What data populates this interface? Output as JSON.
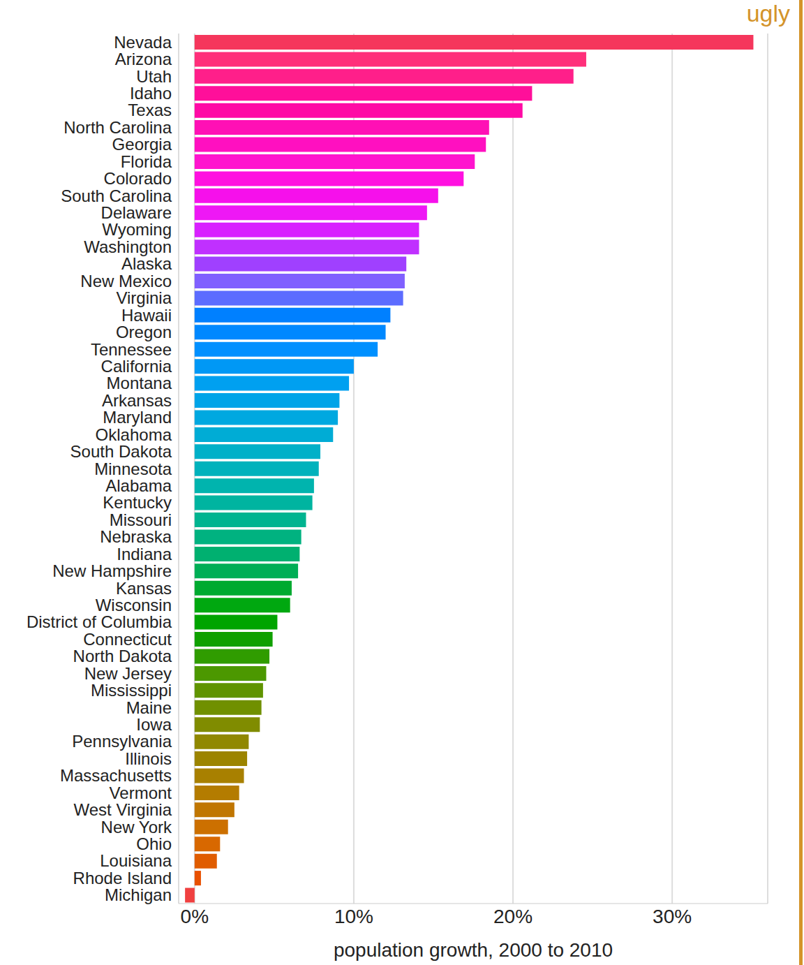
{
  "chart_data": {
    "type": "bar",
    "orientation": "horizontal",
    "annotations": [
      "ugly"
    ],
    "x_label": "population growth, 2000 to 2010",
    "categories": [
      "Nevada",
      "Arizona",
      "Utah",
      "Idaho",
      "Texas",
      "North Carolina",
      "Georgia",
      "Florida",
      "Colorado",
      "South Carolina",
      "Delaware",
      "Wyoming",
      "Washington",
      "Alaska",
      "New Mexico",
      "Virginia",
      "Hawaii",
      "Oregon",
      "Tennessee",
      "California",
      "Montana",
      "Arkansas",
      "Maryland",
      "Oklahoma",
      "South Dakota",
      "Minnesota",
      "Alabama",
      "Kentucky",
      "Missouri",
      "Nebraska",
      "Indiana",
      "New Hampshire",
      "Kansas",
      "Wisconsin",
      "District of Columbia",
      "Connecticut",
      "North Dakota",
      "New Jersey",
      "Mississippi",
      "Maine",
      "Iowa",
      "Pennsylvania",
      "Illinois",
      "Massachusetts",
      "Vermont",
      "West Virginia",
      "New York",
      "Ohio",
      "Louisiana",
      "Rhode Island",
      "Michigan"
    ],
    "values": [
      35.1,
      24.6,
      23.8,
      21.2,
      20.6,
      18.5,
      18.3,
      17.6,
      16.9,
      15.3,
      14.6,
      14.1,
      14.1,
      13.3,
      13.2,
      13.1,
      12.3,
      12.0,
      11.5,
      10.0,
      9.7,
      9.1,
      9.0,
      8.7,
      7.9,
      7.8,
      7.5,
      7.4,
      7.0,
      6.7,
      6.6,
      6.5,
      6.1,
      6.0,
      5.2,
      4.9,
      4.7,
      4.5,
      4.3,
      4.2,
      4.1,
      3.4,
      3.3,
      3.1,
      2.8,
      2.5,
      2.1,
      1.6,
      1.4,
      0.4,
      -0.6
    ],
    "colors": [
      "#F5365C",
      "#FF2F7A",
      "#FF1F8A",
      "#FF0F9A",
      "#FF0AA5",
      "#FF10B5",
      "#FF10C0",
      "#FF14CE",
      "#FF10E0",
      "#F610EB",
      "#EE18F5",
      "#D820FF",
      "#C030FF",
      "#A040FF",
      "#8060FF",
      "#5C6CFF",
      "#0080FF",
      "#0088FF",
      "#0090FF",
      "#0098F5",
      "#00A0F0",
      "#00A4E8",
      "#00A8E0",
      "#00ACD5",
      "#00B0C8",
      "#00B2BC",
      "#00B4AE",
      "#00B4A0",
      "#00B490",
      "#00B280",
      "#00B070",
      "#00AE55",
      "#00AA30",
      "#00A810",
      "#00A400",
      "#10A000",
      "#309C00",
      "#4C9800",
      "#609400",
      "#709000",
      "#808C00",
      "#908800",
      "#9C8400",
      "#A88000",
      "#B47C00",
      "#C07600",
      "#CC7000",
      "#D86800",
      "#E05C00",
      "#E85000",
      "#F04040"
    ],
    "xlim": [
      -1,
      36
    ],
    "xticks": [
      {
        "value": 0,
        "label": "0%"
      },
      {
        "value": 10,
        "label": "10%"
      },
      {
        "value": 20,
        "label": "20%"
      },
      {
        "value": 30,
        "label": "30%"
      }
    ],
    "grid": true
  }
}
